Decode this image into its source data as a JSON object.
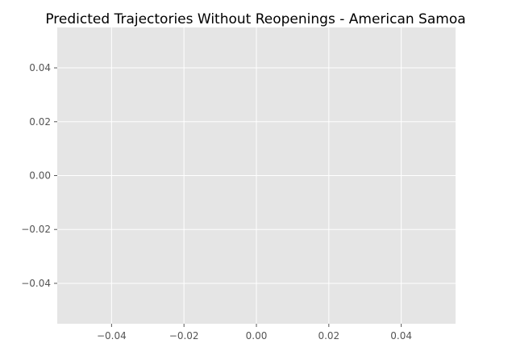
{
  "chart_data": {
    "type": "line",
    "title": "Predicted Trajectories Without Reopenings - American Samoa",
    "xlabel": "",
    "ylabel": "",
    "xlim": [
      -0.055,
      0.055
    ],
    "ylim": [
      -0.055,
      0.055
    ],
    "x_ticks": [
      -0.04,
      -0.02,
      0.0,
      0.02,
      0.04
    ],
    "x_tick_labels": [
      "−0.04",
      "−0.02",
      "0.00",
      "0.02",
      "0.04"
    ],
    "y_ticks": [
      0.04,
      0.02,
      0.0,
      -0.02,
      -0.04
    ],
    "y_tick_labels": [
      "0.04",
      "0.02",
      "0.00",
      "−0.02",
      "−0.04"
    ],
    "grid": true,
    "series": [],
    "colors": {
      "plot_background": "#e5e5e5",
      "grid": "#ffffff",
      "tick_text": "#555555",
      "title_text": "#000000"
    }
  }
}
